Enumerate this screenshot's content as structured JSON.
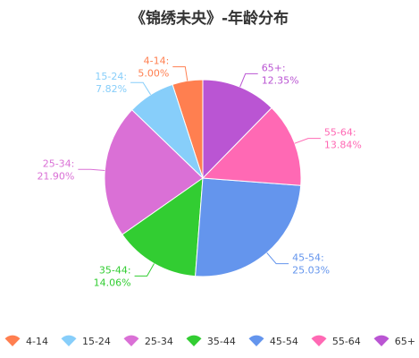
{
  "chart_data": {
    "type": "pie",
    "title": "《锦绣未央》-年龄分布",
    "categories": [
      "4-14",
      "15-24",
      "25-34",
      "35-44",
      "45-54",
      "55-64",
      "65+"
    ],
    "values": [
      5.0,
      7.82,
      21.9,
      14.06,
      25.03,
      13.84,
      12.35
    ],
    "value_labels": [
      "5.00%",
      "7.82%",
      "21.90%",
      "14.06%",
      "25.03%",
      "13.84%",
      "12.35%"
    ],
    "colors": [
      "#ff7f50",
      "#87cefa",
      "#da70d6",
      "#32cd32",
      "#6495ed",
      "#ff69b4",
      "#ba55d3"
    ],
    "start": "top, counter-clockwise",
    "legend_position": "bottom"
  }
}
